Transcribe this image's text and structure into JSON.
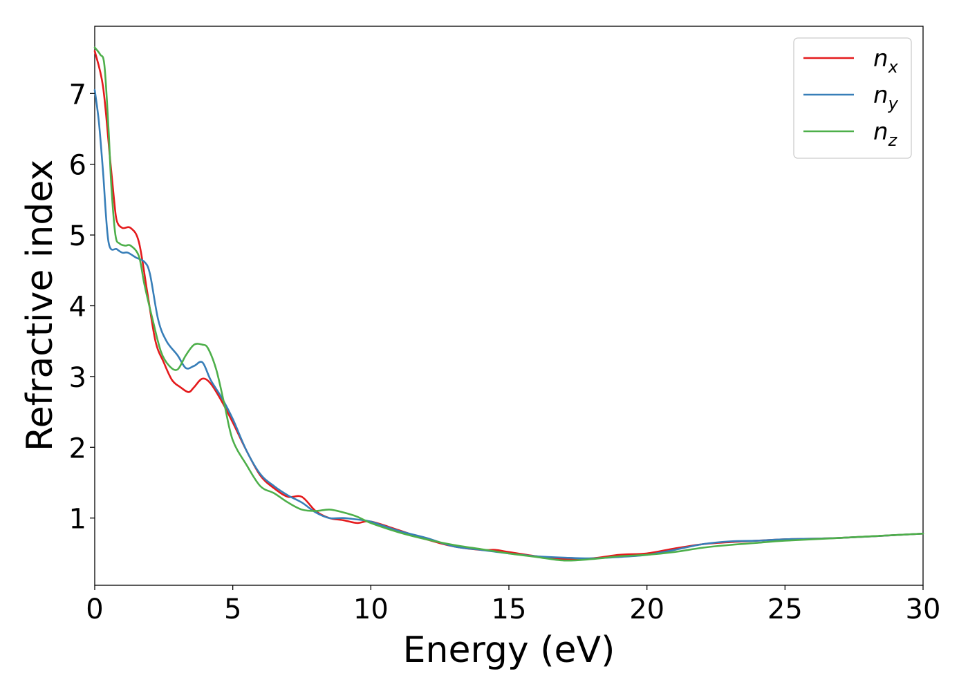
{
  "chart_data": {
    "type": "line",
    "title": "",
    "xlabel": "Energy (eV)",
    "ylabel": "Refractive index",
    "xlim": [
      0,
      30
    ],
    "ylim": [
      0.05,
      7.95
    ],
    "xticks": [
      0,
      5,
      10,
      15,
      20,
      25,
      30
    ],
    "yticks": [
      1,
      2,
      3,
      4,
      5,
      6,
      7
    ],
    "grid": false,
    "legend_position": "top-right",
    "series": [
      {
        "name": "n",
        "subscript": "x",
        "color": "#e41a1c",
        "x": [
          0,
          0.3,
          0.55,
          0.7,
          0.8,
          1.0,
          1.3,
          1.6,
          1.9,
          2.2,
          2.5,
          2.8,
          3.1,
          3.4,
          3.6,
          3.9,
          4.2,
          4.6,
          5.0,
          5.5,
          6.0,
          6.5,
          7.0,
          7.5,
          8.0,
          8.5,
          9.0,
          9.5,
          10,
          11,
          12,
          13,
          14,
          14.5,
          15,
          16,
          17,
          18,
          19,
          20,
          21,
          22,
          23,
          24,
          25,
          27,
          30
        ],
        "y": [
          7.6,
          7.1,
          6.1,
          5.5,
          5.2,
          5.1,
          5.1,
          4.9,
          4.2,
          3.5,
          3.2,
          2.95,
          2.85,
          2.78,
          2.85,
          2.97,
          2.9,
          2.65,
          2.35,
          1.95,
          1.6,
          1.42,
          1.3,
          1.3,
          1.1,
          1.0,
          0.97,
          0.93,
          0.95,
          0.83,
          0.7,
          0.6,
          0.55,
          0.55,
          0.52,
          0.46,
          0.42,
          0.43,
          0.48,
          0.5,
          0.57,
          0.63,
          0.66,
          0.68,
          0.7,
          0.72,
          0.78
        ]
      },
      {
        "name": "n",
        "subscript": "y",
        "color": "#377eb8",
        "x": [
          0,
          0.15,
          0.3,
          0.5,
          0.8,
          1.0,
          1.2,
          1.5,
          1.8,
          2.0,
          2.3,
          2.6,
          3.0,
          3.3,
          3.6,
          3.9,
          4.2,
          4.6,
          5.0,
          5.5,
          6.0,
          6.5,
          7.0,
          7.5,
          8.0,
          8.5,
          9.0,
          9.5,
          10,
          11,
          12,
          13,
          14,
          15,
          16,
          17,
          18,
          19,
          20,
          21,
          22,
          23,
          24,
          25,
          27,
          30
        ],
        "y": [
          7.05,
          6.6,
          5.9,
          4.9,
          4.8,
          4.75,
          4.75,
          4.68,
          4.62,
          4.45,
          3.8,
          3.5,
          3.3,
          3.12,
          3.15,
          3.2,
          2.95,
          2.7,
          2.4,
          1.95,
          1.62,
          1.45,
          1.32,
          1.22,
          1.08,
          1.0,
          1.0,
          0.98,
          0.95,
          0.82,
          0.72,
          0.6,
          0.55,
          0.5,
          0.46,
          0.44,
          0.43,
          0.45,
          0.48,
          0.55,
          0.63,
          0.67,
          0.68,
          0.7,
          0.72,
          0.78
        ]
      },
      {
        "name": "n",
        "subscript": "z",
        "color": "#4daf4a",
        "x": [
          0,
          0.2,
          0.35,
          0.5,
          0.6,
          0.75,
          0.9,
          1.1,
          1.3,
          1.6,
          1.8,
          2.1,
          2.4,
          2.7,
          3.0,
          3.3,
          3.6,
          3.9,
          4.1,
          4.4,
          4.7,
          5.0,
          5.5,
          6.0,
          6.5,
          7.0,
          7.5,
          8.0,
          8.5,
          9.0,
          9.5,
          10,
          11,
          12,
          13,
          14,
          15,
          16,
          17,
          18,
          19,
          20,
          21,
          22,
          23,
          24,
          25,
          27,
          30
        ],
        "y": [
          7.65,
          7.55,
          7.4,
          6.5,
          5.7,
          5.0,
          4.88,
          4.85,
          4.85,
          4.7,
          4.3,
          3.8,
          3.35,
          3.15,
          3.1,
          3.3,
          3.45,
          3.45,
          3.4,
          3.1,
          2.6,
          2.1,
          1.75,
          1.45,
          1.35,
          1.22,
          1.12,
          1.1,
          1.12,
          1.08,
          1.02,
          0.93,
          0.8,
          0.7,
          0.62,
          0.56,
          0.5,
          0.45,
          0.4,
          0.42,
          0.46,
          0.48,
          0.52,
          0.58,
          0.62,
          0.65,
          0.68,
          0.72,
          0.78
        ]
      }
    ]
  }
}
